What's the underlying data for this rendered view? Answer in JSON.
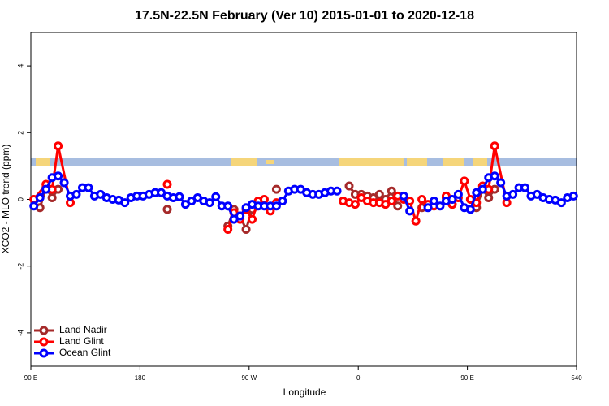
{
  "chart_data": {
    "type": "line",
    "title": "17.5N-22.5N February (Ver 10)   2015-01-01 to 2020-12-18",
    "x_label": "Longitude",
    "y_label": "XCO2 - MLO trend (ppm)",
    "xlim": [
      90,
      540
    ],
    "xticks": [
      {
        "value": 90,
        "label": "90 E"
      },
      180,
      {
        "value": 270,
        "label": "90 W"
      },
      {
        "value": 360,
        "label": "0"
      },
      {
        "value": 450,
        "label": "90 E"
      },
      540
    ],
    "ylim": [
      -5,
      5
    ],
    "yticks": [
      -4,
      -2,
      0,
      2,
      4
    ],
    "legend": "bottom-left",
    "series": [
      {
        "name": "Land Nadir",
        "color": "#a52a2a",
        "x": [
          97.5,
          102.5,
          107.5,
          112.5,
          null,
          202.5,
          null,
          252.5,
          257.5,
          262.5,
          267.5,
          272.5,
          277.5,
          null,
          292.5,
          null,
          352.5,
          357.5,
          362.5,
          367.5,
          372.5,
          377.5,
          382.5,
          387.5,
          392.5,
          null,
          412.5,
          417.5,
          null,
          432.5,
          437.5,
          null,
          457.5,
          462.5,
          467.5,
          472.5
        ],
        "values": [
          -0.25,
          0.35,
          0.05,
          0.3,
          null,
          -0.3,
          null,
          -0.8,
          -0.3,
          -0.5,
          -0.9,
          -0.3,
          -0.15,
          null,
          0.3,
          null,
          0.4,
          0.15,
          0.15,
          0.1,
          0.05,
          0.15,
          0,
          0.25,
          -0.2,
          null,
          -0.25,
          -0.2,
          null,
          0.05,
          -0.15,
          null,
          -0.25,
          0.3,
          0.05,
          0.3
        ]
      },
      {
        "name": "Land Glint",
        "color": "#ff0000",
        "x": [
          92.5,
          102.5,
          107.5,
          112.5,
          122.5,
          null,
          202.5,
          null,
          252.5,
          257.5,
          262.5,
          267.5,
          272.5,
          277.5,
          282.5,
          287.5,
          292.5,
          null,
          347.5,
          352.5,
          357.5,
          362.5,
          367.5,
          372.5,
          377.5,
          382.5,
          387.5,
          392.5,
          397.5,
          402.5,
          407.5,
          412.5,
          417.5,
          422.5,
          null,
          432.5,
          437.5,
          442.5,
          447.5,
          452.5,
          457.5,
          462.5,
          467.5,
          472.5,
          482.5
        ],
        "values": [
          0,
          0.45,
          0.3,
          1.6,
          -0.1,
          null,
          0.45,
          null,
          -0.9,
          -0.4,
          -0.6,
          -0.3,
          -0.6,
          -0.05,
          0,
          -0.35,
          -0.1,
          null,
          -0.05,
          -0.1,
          -0.15,
          0.05,
          -0.05,
          -0.1,
          -0.1,
          -0.15,
          -0.05,
          0.1,
          0,
          -0.05,
          -0.65,
          0,
          -0.15,
          -0.2,
          null,
          0.1,
          -0.15,
          0.05,
          0.55,
          0,
          -0.1,
          0.4,
          0.3,
          1.6,
          -0.1
        ]
      },
      {
        "name": "Ocean Glint",
        "color": "#0000ff",
        "x": [
          92.5,
          97.5,
          102.5,
          107.5,
          112.5,
          117.5,
          122.5,
          127.5,
          132.5,
          137.5,
          142.5,
          147.5,
          152.5,
          157.5,
          162.5,
          167.5,
          172.5,
          177.5,
          182.5,
          187.5,
          192.5,
          197.5,
          202.5,
          207.5,
          212.5,
          217.5,
          222.5,
          227.5,
          232.5,
          237.5,
          242.5,
          247.5,
          252.5,
          257.5,
          262.5,
          267.5,
          272.5,
          277.5,
          282.5,
          287.5,
          292.5,
          297.5,
          302.5,
          307.5,
          312.5,
          317.5,
          322.5,
          327.5,
          332.5,
          337.5,
          342.5,
          null,
          397.5,
          402.5,
          null,
          417.5,
          422.5,
          427.5,
          432.5,
          437.5,
          442.5,
          447.5,
          452.5,
          457.5,
          462.5,
          467.5,
          472.5,
          477.5,
          482.5,
          487.5,
          492.5,
          497.5,
          502.5,
          507.5,
          512.5,
          517.5,
          522.5,
          527.5,
          532.5,
          537.5
        ],
        "values": [
          -0.2,
          0.05,
          0.3,
          0.65,
          0.7,
          0.5,
          0.1,
          0.15,
          0.35,
          0.35,
          0.1,
          0.15,
          0.05,
          0,
          -0.02,
          -0.1,
          0.05,
          0.1,
          0.1,
          0.15,
          0.2,
          0.2,
          0.1,
          0.05,
          0.08,
          -0.15,
          -0.05,
          0.05,
          -0.05,
          -0.1,
          0.08,
          -0.2,
          -0.2,
          -0.6,
          -0.5,
          -0.25,
          -0.15,
          -0.2,
          -0.2,
          -0.2,
          -0.2,
          -0.05,
          0.25,
          0.3,
          0.3,
          0.2,
          0.15,
          0.15,
          0.2,
          0.25,
          0.25,
          null,
          0.1,
          -0.35,
          null,
          -0.25,
          -0.05,
          -0.2,
          -0.05,
          0,
          0.15,
          -0.25,
          -0.3,
          0.2,
          0.3,
          0.65,
          0.7,
          0.5,
          0.1,
          0.15,
          0.35,
          0.35,
          0.1,
          0.15,
          0.05,
          0,
          -0.02,
          -0.1,
          0.05,
          0.1
        ]
      }
    ]
  }
}
